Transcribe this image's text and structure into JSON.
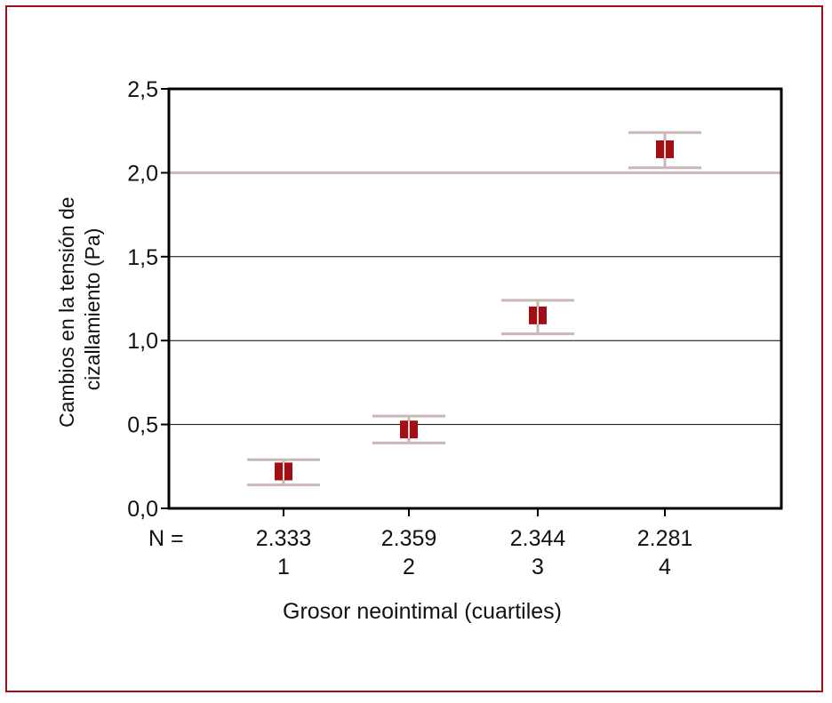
{
  "chart_data": {
    "type": "scatter",
    "subtype": "error-bar",
    "title": "",
    "ylabel_lines": [
      "Cambios en la tensión de",
      "cizallamiento (Pa)"
    ],
    "xlabel": "Grosor neointimal (cuartiles)",
    "n_label": "N =",
    "categories": [
      "1",
      "2",
      "3",
      "4"
    ],
    "n_values": [
      "2.333",
      "2.359",
      "2.344",
      "2.281"
    ],
    "values": [
      0.22,
      0.47,
      1.15,
      2.14
    ],
    "error_low": [
      0.14,
      0.39,
      1.04,
      2.03
    ],
    "error_high": [
      0.29,
      0.55,
      1.24,
      2.24
    ],
    "ylim": [
      0,
      2.5
    ],
    "yticks": [
      "0,0",
      "0,5",
      "1,0",
      "1,5",
      "2,0",
      "2,5"
    ],
    "ytick_values": [
      0,
      0.5,
      1.0,
      1.5,
      2.0,
      2.5
    ],
    "reference_line": 2.0,
    "grid": true,
    "colors": {
      "frame": "#a30d14",
      "marker": "#a30d14",
      "error_bar": "#c9b8b5",
      "reference_line": "#c9b8b5",
      "grid": "#000000"
    }
  }
}
